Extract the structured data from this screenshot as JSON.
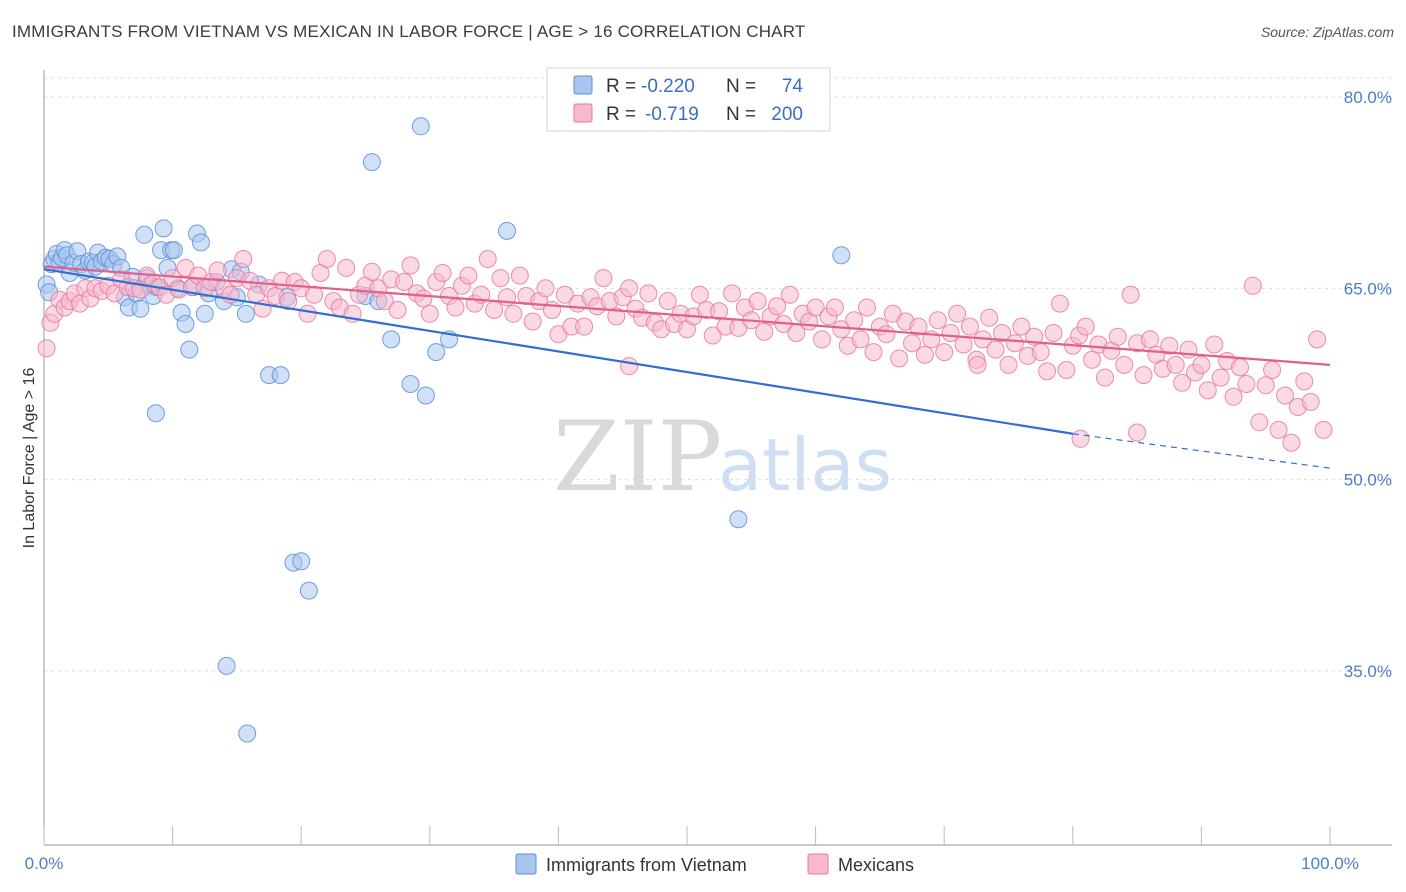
{
  "title": "IMMIGRANTS FROM VIETNAM VS MEXICAN IN LABOR FORCE | AGE > 16 CORRELATION CHART",
  "source": "Source: ZipAtlas.com",
  "watermark": {
    "zip": "ZIP",
    "atlas": "atlas"
  },
  "colors": {
    "vietnam": "#5b8fd9",
    "vietnam_fill": "#a9c6ef",
    "mexican": "#e8799f",
    "mexican_fill": "#f6b9cd",
    "tick_label": "#4a7fc9"
  },
  "legend": {
    "rows": [
      {
        "r_label": "R =",
        "r_value": "-0.220",
        "n_label": "N =",
        "n_value": "74"
      },
      {
        "r_label": "R =",
        "r_value": "-0.719",
        "n_label": "N =",
        "n_value": "200"
      }
    ]
  },
  "bottom_legend": [
    "Immigrants from Vietnam",
    "Mexicans"
  ],
  "chart_data": {
    "type": "scatter",
    "title": "IMMIGRANTS FROM VIETNAM VS MEXICAN IN LABOR FORCE | AGE > 16 CORRELATION CHART",
    "xlabel": "",
    "ylabel": "In Labor Force | Age > 16",
    "xlim": [
      0,
      100
    ],
    "ylim": [
      20,
      82
    ],
    "x_tick_labels": [
      "0.0%",
      "100.0%"
    ],
    "y_ticks": [
      35,
      50,
      65,
      80
    ],
    "y_tick_labels": [
      "35.0%",
      "50.0%",
      "65.0%",
      "80.0%"
    ],
    "grid": "horizontal dashed",
    "legend_placement": "top-center",
    "series": [
      {
        "name": "Immigrants from Vietnam",
        "r": -0.22,
        "n": 74,
        "trend": {
          "x_start": 0,
          "y_start": 66.5,
          "x_solid_end": 80,
          "y_solid_end": 53.6,
          "x_end": 100,
          "y_end": 50.9
        },
        "points": [
          [
            0.2,
            65.3
          ],
          [
            0.4,
            64.7
          ],
          [
            0.6,
            66.9
          ],
          [
            0.8,
            67.3
          ],
          [
            1.0,
            67.7
          ],
          [
            1.2,
            67.0
          ],
          [
            1.4,
            67.4
          ],
          [
            1.6,
            68.0
          ],
          [
            1.8,
            67.6
          ],
          [
            2.0,
            66.2
          ],
          [
            2.3,
            67.0
          ],
          [
            2.6,
            67.9
          ],
          [
            2.9,
            66.9
          ],
          [
            3.2,
            66.4
          ],
          [
            3.5,
            67.1
          ],
          [
            3.8,
            67.0
          ],
          [
            4.0,
            66.7
          ],
          [
            4.2,
            67.8
          ],
          [
            4.5,
            67.1
          ],
          [
            4.8,
            67.4
          ],
          [
            5.1,
            67.3
          ],
          [
            5.4,
            66.9
          ],
          [
            5.7,
            67.5
          ],
          [
            6.0,
            66.6
          ],
          [
            6.3,
            64.3
          ],
          [
            6.6,
            63.5
          ],
          [
            6.9,
            65.9
          ],
          [
            7.2,
            64.6
          ],
          [
            7.5,
            63.4
          ],
          [
            7.8,
            69.2
          ],
          [
            8.0,
            65.8
          ],
          [
            8.2,
            65.2
          ],
          [
            8.5,
            64.4
          ],
          [
            8.8,
            65.1
          ],
          [
            9.1,
            68.0
          ],
          [
            9.3,
            69.7
          ],
          [
            9.6,
            66.6
          ],
          [
            9.9,
            68.0
          ],
          [
            10.1,
            68.0
          ],
          [
            10.4,
            65.0
          ],
          [
            10.7,
            63.1
          ],
          [
            11.0,
            62.2
          ],
          [
            11.3,
            60.2
          ],
          [
            11.6,
            65.1
          ],
          [
            11.9,
            69.3
          ],
          [
            12.2,
            68.6
          ],
          [
            12.5,
            63.0
          ],
          [
            12.8,
            64.6
          ],
          [
            13.4,
            65.5
          ],
          [
            14.0,
            64.0
          ],
          [
            14.6,
            66.5
          ],
          [
            15.0,
            64.3
          ],
          [
            15.3,
            66.3
          ],
          [
            15.7,
            63.0
          ],
          [
            16.7,
            65.3
          ],
          [
            17.5,
            58.2
          ],
          [
            18.4,
            58.2
          ],
          [
            18.9,
            64.3
          ],
          [
            19.4,
            43.5
          ],
          [
            20.0,
            43.6
          ],
          [
            20.6,
            41.3
          ],
          [
            25.0,
            64.4
          ],
          [
            25.5,
            74.9
          ],
          [
            26.0,
            64.0
          ],
          [
            27.0,
            61.0
          ],
          [
            28.5,
            57.5
          ],
          [
            29.3,
            77.7
          ],
          [
            29.7,
            56.6
          ],
          [
            30.5,
            60.0
          ],
          [
            31.5,
            61.0
          ],
          [
            36.0,
            69.5
          ],
          [
            62.0,
            67.6
          ],
          [
            54.0,
            46.9
          ],
          [
            15.8,
            30.1
          ],
          [
            14.2,
            35.4
          ],
          [
            8.7,
            55.2
          ]
        ]
      },
      {
        "name": "Mexicans",
        "r": -0.719,
        "n": 200,
        "trend": {
          "x_start": 0,
          "y_start": 66.7,
          "x_end": 100,
          "y_end": 59.0
        },
        "points": [
          [
            0.2,
            60.3
          ],
          [
            0.5,
            62.3
          ],
          [
            0.8,
            63.0
          ],
          [
            1.2,
            64.1
          ],
          [
            1.6,
            63.5
          ],
          [
            2.0,
            64.0
          ],
          [
            2.4,
            64.6
          ],
          [
            2.8,
            63.8
          ],
          [
            3.2,
            65.0
          ],
          [
            3.6,
            64.2
          ],
          [
            4.0,
            65.0
          ],
          [
            4.5,
            64.8
          ],
          [
            5.0,
            65.2
          ],
          [
            5.5,
            64.6
          ],
          [
            6.0,
            65.7
          ],
          [
            6.5,
            65.1
          ],
          [
            7.0,
            65.0
          ],
          [
            7.5,
            64.9
          ],
          [
            8.0,
            66.0
          ],
          [
            8.5,
            65.4
          ],
          [
            9.0,
            65.1
          ],
          [
            9.5,
            64.5
          ],
          [
            10.0,
            65.8
          ],
          [
            10.5,
            64.9
          ],
          [
            11.0,
            66.6
          ],
          [
            11.5,
            65.1
          ],
          [
            12.0,
            66.0
          ],
          [
            12.5,
            65.0
          ],
          [
            13.0,
            65.5
          ],
          [
            13.5,
            66.4
          ],
          [
            14.0,
            65.0
          ],
          [
            14.5,
            64.5
          ],
          [
            15.0,
            65.8
          ],
          [
            15.5,
            67.3
          ],
          [
            16.0,
            65.6
          ],
          [
            16.5,
            64.5
          ],
          [
            17.0,
            63.4
          ],
          [
            17.5,
            65.0
          ],
          [
            18.0,
            64.4
          ],
          [
            18.5,
            65.6
          ],
          [
            19.0,
            64.0
          ],
          [
            19.5,
            65.5
          ],
          [
            20.0,
            65.0
          ],
          [
            20.5,
            63.0
          ],
          [
            21.0,
            64.5
          ],
          [
            21.5,
            66.2
          ],
          [
            22.0,
            67.3
          ],
          [
            22.5,
            64.0
          ],
          [
            23.0,
            63.5
          ],
          [
            23.5,
            66.6
          ],
          [
            24.0,
            63.0
          ],
          [
            24.5,
            64.5
          ],
          [
            25.0,
            65.2
          ],
          [
            25.5,
            66.3
          ],
          [
            26.0,
            65.0
          ],
          [
            26.5,
            64.0
          ],
          [
            27.0,
            65.7
          ],
          [
            27.5,
            63.3
          ],
          [
            28.0,
            65.5
          ],
          [
            28.5,
            66.8
          ],
          [
            29.0,
            64.6
          ],
          [
            29.5,
            64.2
          ],
          [
            30.0,
            63.0
          ],
          [
            30.5,
            65.5
          ],
          [
            31.0,
            66.2
          ],
          [
            31.5,
            64.4
          ],
          [
            32.0,
            63.5
          ],
          [
            32.5,
            65.2
          ],
          [
            33.0,
            66.0
          ],
          [
            33.5,
            63.8
          ],
          [
            34.0,
            64.5
          ],
          [
            34.5,
            67.3
          ],
          [
            35.0,
            63.3
          ],
          [
            35.5,
            65.8
          ],
          [
            36.0,
            64.3
          ],
          [
            36.5,
            63.0
          ],
          [
            37.0,
            66.0
          ],
          [
            37.5,
            64.4
          ],
          [
            38.0,
            62.4
          ],
          [
            38.5,
            64.0
          ],
          [
            39.0,
            65.0
          ],
          [
            39.5,
            63.3
          ],
          [
            40.0,
            61.4
          ],
          [
            40.5,
            64.5
          ],
          [
            41.0,
            62.0
          ],
          [
            41.5,
            63.8
          ],
          [
            42.0,
            62.0
          ],
          [
            42.5,
            64.3
          ],
          [
            43.0,
            63.6
          ],
          [
            43.5,
            65.8
          ],
          [
            44.0,
            64.0
          ],
          [
            44.5,
            62.8
          ],
          [
            45.0,
            64.3
          ],
          [
            45.5,
            65.0
          ],
          [
            46.0,
            63.4
          ],
          [
            46.5,
            62.7
          ],
          [
            47.0,
            64.6
          ],
          [
            47.5,
            62.3
          ],
          [
            48.0,
            61.8
          ],
          [
            48.5,
            64.0
          ],
          [
            49.0,
            62.2
          ],
          [
            49.5,
            63.0
          ],
          [
            50.0,
            61.8
          ],
          [
            50.5,
            62.8
          ],
          [
            51.0,
            64.5
          ],
          [
            51.5,
            63.3
          ],
          [
            52.0,
            61.3
          ],
          [
            52.5,
            63.2
          ],
          [
            53.0,
            62.0
          ],
          [
            53.5,
            64.6
          ],
          [
            54.0,
            61.9
          ],
          [
            54.5,
            63.5
          ],
          [
            55.0,
            62.5
          ],
          [
            55.5,
            64.0
          ],
          [
            56.0,
            61.6
          ],
          [
            56.5,
            62.8
          ],
          [
            57.0,
            63.6
          ],
          [
            57.5,
            62.2
          ],
          [
            58.0,
            64.5
          ],
          [
            58.5,
            61.5
          ],
          [
            59.0,
            63.0
          ],
          [
            59.5,
            62.4
          ],
          [
            60.0,
            63.5
          ],
          [
            60.5,
            61.0
          ],
          [
            61.0,
            62.8
          ],
          [
            61.5,
            63.5
          ],
          [
            62.0,
            61.8
          ],
          [
            62.5,
            60.5
          ],
          [
            63.0,
            62.5
          ],
          [
            63.5,
            61.0
          ],
          [
            64.0,
            63.5
          ],
          [
            64.5,
            60.0
          ],
          [
            65.0,
            62.0
          ],
          [
            65.5,
            61.4
          ],
          [
            66.0,
            63.0
          ],
          [
            66.5,
            59.5
          ],
          [
            67.0,
            62.4
          ],
          [
            67.5,
            60.7
          ],
          [
            68.0,
            62.0
          ],
          [
            68.5,
            59.8
          ],
          [
            69.0,
            61.0
          ],
          [
            69.5,
            62.5
          ],
          [
            70.0,
            60.0
          ],
          [
            70.5,
            61.5
          ],
          [
            71.0,
            63.0
          ],
          [
            71.5,
            60.6
          ],
          [
            72.0,
            62.0
          ],
          [
            72.5,
            59.4
          ],
          [
            73.0,
            61.0
          ],
          [
            73.5,
            62.7
          ],
          [
            74.0,
            60.2
          ],
          [
            74.5,
            61.5
          ],
          [
            75.0,
            59.0
          ],
          [
            75.5,
            60.7
          ],
          [
            76.0,
            62.0
          ],
          [
            76.5,
            59.7
          ],
          [
            77.0,
            61.2
          ],
          [
            77.5,
            60.0
          ],
          [
            78.0,
            58.5
          ],
          [
            78.5,
            61.5
          ],
          [
            79.0,
            63.8
          ],
          [
            79.5,
            58.6
          ],
          [
            80.0,
            60.5
          ],
          [
            80.5,
            61.3
          ],
          [
            81.0,
            62.0
          ],
          [
            81.5,
            59.4
          ],
          [
            82.0,
            60.6
          ],
          [
            82.5,
            58.0
          ],
          [
            83.0,
            60.1
          ],
          [
            83.5,
            61.2
          ],
          [
            84.0,
            59.0
          ],
          [
            84.5,
            64.5
          ],
          [
            85.0,
            60.7
          ],
          [
            85.5,
            58.2
          ],
          [
            86.0,
            61.0
          ],
          [
            86.5,
            59.8
          ],
          [
            87.0,
            58.7
          ],
          [
            87.5,
            60.5
          ],
          [
            88.0,
            59.0
          ],
          [
            88.5,
            57.6
          ],
          [
            89.0,
            60.2
          ],
          [
            89.5,
            58.4
          ],
          [
            90.0,
            59.0
          ],
          [
            90.5,
            57.0
          ],
          [
            91.0,
            60.6
          ],
          [
            91.5,
            58.0
          ],
          [
            92.0,
            59.3
          ],
          [
            92.5,
            56.5
          ],
          [
            93.0,
            58.8
          ],
          [
            93.5,
            57.5
          ],
          [
            94.0,
            65.2
          ],
          [
            94.5,
            54.5
          ],
          [
            95.0,
            57.4
          ],
          [
            95.5,
            58.6
          ],
          [
            96.0,
            53.9
          ],
          [
            96.5,
            56.6
          ],
          [
            97.0,
            52.9
          ],
          [
            97.5,
            55.7
          ],
          [
            98.0,
            57.7
          ],
          [
            98.5,
            56.1
          ],
          [
            99.0,
            61.0
          ],
          [
            99.5,
            53.9
          ],
          [
            80.6,
            53.2
          ],
          [
            85.0,
            53.7
          ],
          [
            45.5,
            58.9
          ],
          [
            72.6,
            59.0
          ]
        ]
      }
    ]
  }
}
